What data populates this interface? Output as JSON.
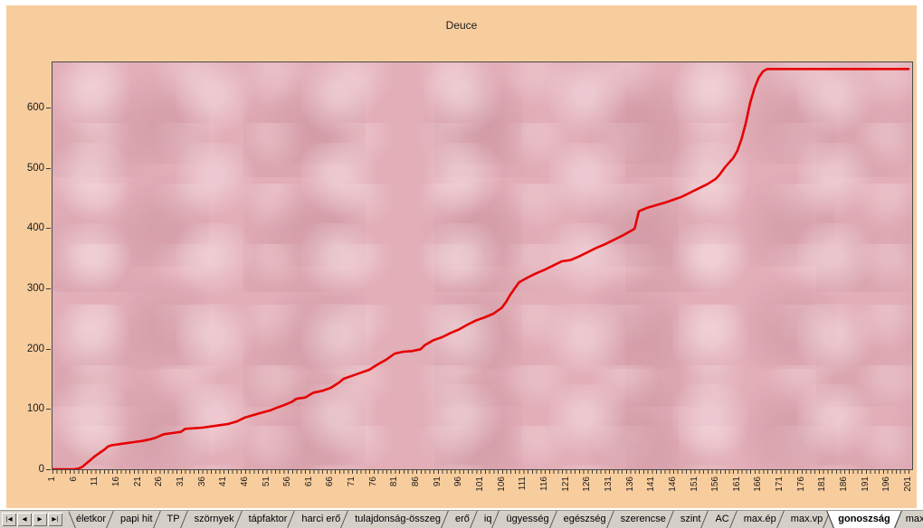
{
  "chart_data": {
    "type": "line",
    "title": "Deuce",
    "xlabel": "",
    "ylabel": "",
    "x_range": [
      1,
      201
    ],
    "ylim": [
      0,
      675
    ],
    "y_ticks": [
      0,
      100,
      200,
      300,
      400,
      500,
      600
    ],
    "x_tick_labels": [
      1,
      6,
      11,
      16,
      21,
      26,
      31,
      36,
      41,
      46,
      51,
      56,
      61,
      66,
      71,
      76,
      81,
      86,
      91,
      96,
      101,
      106,
      111,
      116,
      121,
      126,
      131,
      136,
      141,
      146,
      151,
      156,
      161,
      166,
      171,
      176,
      181,
      186,
      191,
      196,
      201
    ],
    "gridlines": {
      "values": [
        100,
        200,
        300,
        400,
        500,
        600
      ],
      "style": "dashed"
    },
    "legend_position": "none",
    "colors": {
      "chart_background": "#f8cd9e",
      "plot_background": "#e2aeb8",
      "gridline": "#1b1b1b",
      "axis_text": "#1c1c1c"
    },
    "series": [
      {
        "name": "Deuce",
        "color": "#e60000",
        "points": [
          [
            1,
            0
          ],
          [
            6,
            0
          ],
          [
            7,
            1
          ],
          [
            8,
            4
          ],
          [
            9,
            10
          ],
          [
            10,
            16
          ],
          [
            11,
            22
          ],
          [
            12,
            27
          ],
          [
            13,
            32
          ],
          [
            14,
            38
          ],
          [
            15,
            40
          ],
          [
            16,
            41
          ],
          [
            18,
            43
          ],
          [
            20,
            45
          ],
          [
            22,
            47
          ],
          [
            24,
            50
          ],
          [
            25,
            52
          ],
          [
            26,
            55
          ],
          [
            27,
            58
          ],
          [
            29,
            60
          ],
          [
            31,
            62
          ],
          [
            32,
            67
          ],
          [
            34,
            68
          ],
          [
            36,
            69
          ],
          [
            38,
            71
          ],
          [
            40,
            73
          ],
          [
            42,
            75
          ],
          [
            44,
            79
          ],
          [
            46,
            86
          ],
          [
            48,
            90
          ],
          [
            50,
            94
          ],
          [
            52,
            98
          ],
          [
            53,
            101
          ],
          [
            55,
            106
          ],
          [
            57,
            112
          ],
          [
            58,
            117
          ],
          [
            60,
            119
          ],
          [
            62,
            127
          ],
          [
            64,
            130
          ],
          [
            66,
            135
          ],
          [
            68,
            144
          ],
          [
            69,
            150
          ],
          [
            71,
            155
          ],
          [
            73,
            160
          ],
          [
            75,
            165
          ],
          [
            77,
            174
          ],
          [
            79,
            182
          ],
          [
            81,
            192
          ],
          [
            83,
            195
          ],
          [
            85,
            196
          ],
          [
            87,
            199
          ],
          [
            88,
            206
          ],
          [
            90,
            214
          ],
          [
            92,
            219
          ],
          [
            94,
            226
          ],
          [
            96,
            232
          ],
          [
            98,
            240
          ],
          [
            100,
            247
          ],
          [
            102,
            252
          ],
          [
            104,
            258
          ],
          [
            106,
            268
          ],
          [
            107,
            278
          ],
          [
            108,
            290
          ],
          [
            109,
            300
          ],
          [
            110,
            310
          ],
          [
            112,
            318
          ],
          [
            114,
            325
          ],
          [
            116,
            331
          ],
          [
            118,
            338
          ],
          [
            120,
            345
          ],
          [
            122,
            347
          ],
          [
            124,
            353
          ],
          [
            126,
            360
          ],
          [
            128,
            367
          ],
          [
            130,
            373
          ],
          [
            132,
            380
          ],
          [
            134,
            387
          ],
          [
            136,
            395
          ],
          [
            137,
            399
          ],
          [
            138,
            428
          ],
          [
            140,
            434
          ],
          [
            142,
            438
          ],
          [
            144,
            442
          ],
          [
            146,
            447
          ],
          [
            148,
            452
          ],
          [
            150,
            459
          ],
          [
            152,
            466
          ],
          [
            154,
            473
          ],
          [
            156,
            482
          ],
          [
            157,
            490
          ],
          [
            158,
            500
          ],
          [
            159,
            508
          ],
          [
            160,
            516
          ],
          [
            161,
            528
          ],
          [
            162,
            548
          ],
          [
            163,
            575
          ],
          [
            164,
            608
          ],
          [
            165,
            632
          ],
          [
            166,
            650
          ],
          [
            167,
            660
          ],
          [
            168,
            664
          ],
          [
            201,
            664
          ]
        ]
      }
    ]
  },
  "tabbar": {
    "nav_glyphs": [
      "|◀",
      "◀",
      "▶",
      "▶|"
    ],
    "nav_names": [
      "first-sheet",
      "previous-sheet",
      "next-sheet",
      "last-sheet"
    ],
    "tabs": [
      "életkor",
      "papi hit",
      "TP",
      "szörnyek",
      "tápfaktor",
      "harci erő",
      "tulajdonság-összeg",
      "erő",
      "iq",
      "ügyesség",
      "egészség",
      "szerencse",
      "szint",
      "AC",
      "max.ép",
      "max.vp",
      "gonoszság",
      "max"
    ],
    "selected": "gonoszság"
  }
}
